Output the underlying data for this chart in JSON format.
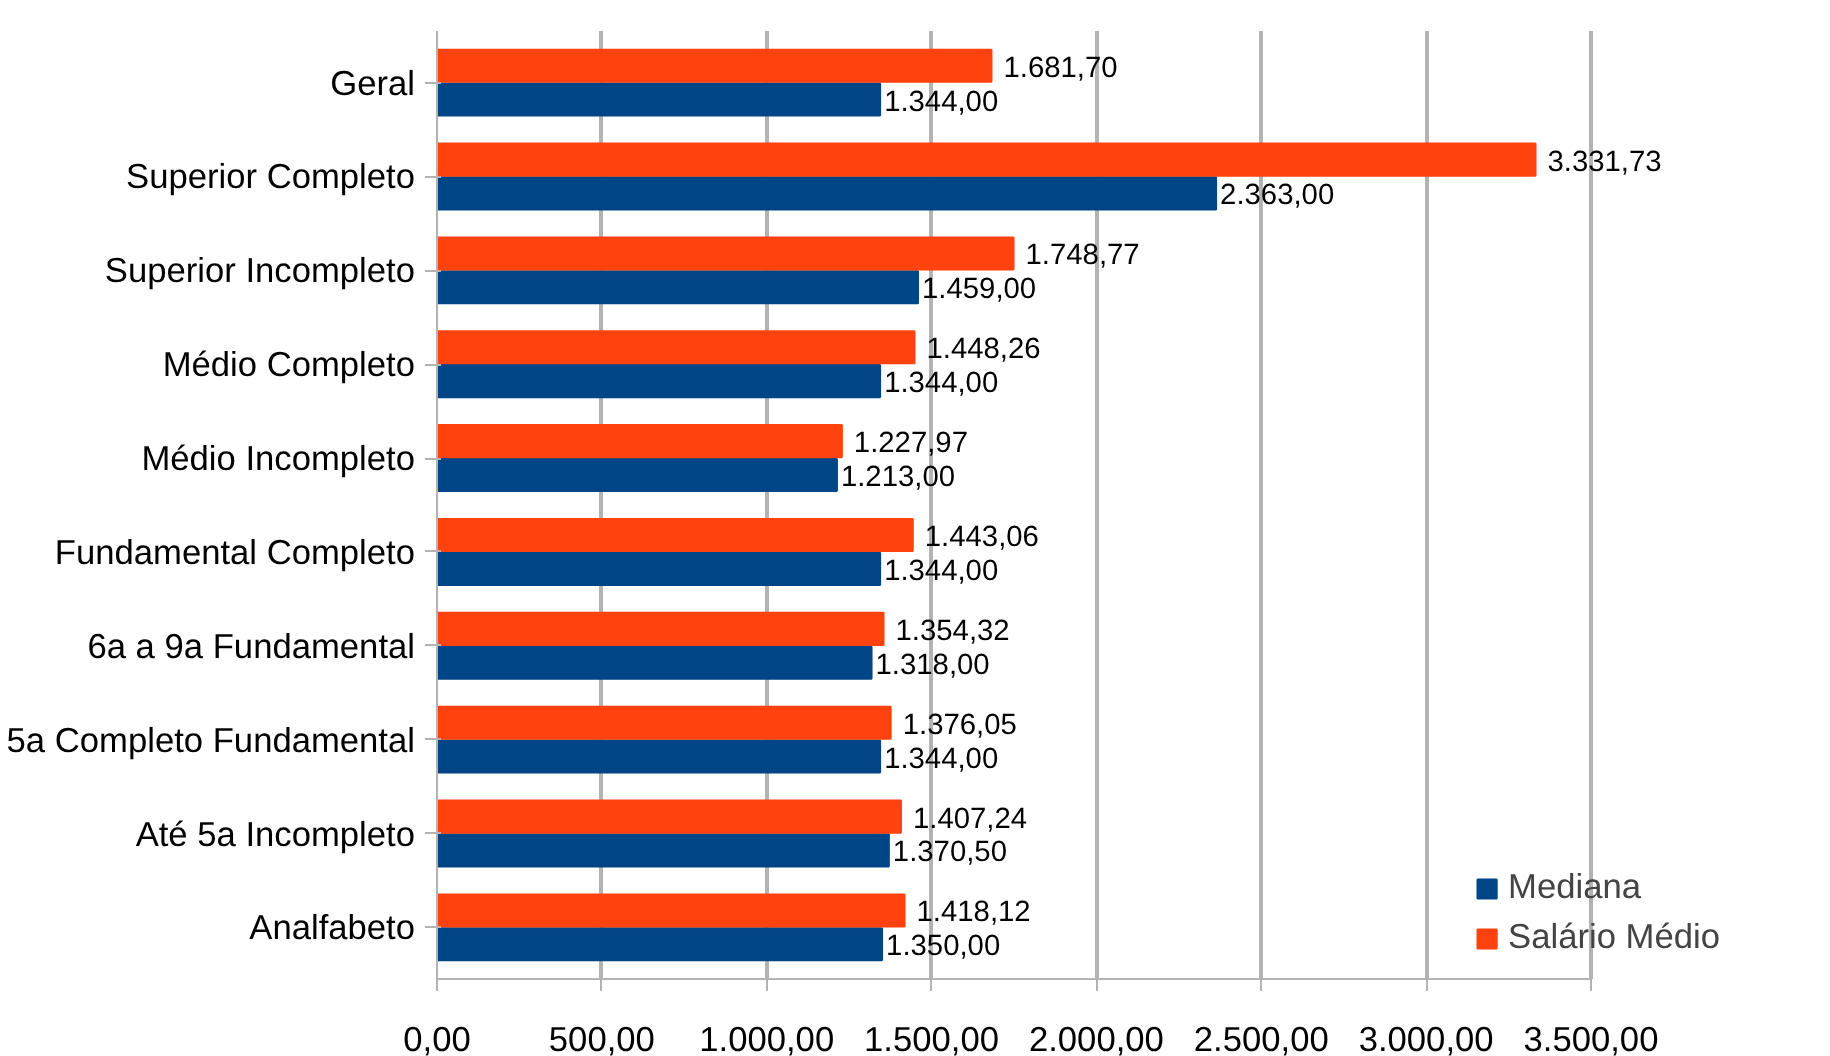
{
  "chart_data": {
    "type": "bar",
    "orientation": "horizontal",
    "categories": [
      "Geral",
      "Superior Completo",
      "Superior Incompleto",
      "Médio Completo",
      "Médio Incompleto",
      "Fundamental Completo",
      "6a a 9a Fundamental",
      "5a Completo Fundamental",
      "Até 5a Incompleto",
      "Analfabeto"
    ],
    "series": [
      {
        "name": "Mediana",
        "color": "#004586",
        "values": [
          1344.0,
          2363.0,
          1459.0,
          1344.0,
          1213.0,
          1344.0,
          1318.0,
          1344.0,
          1370.5,
          1350.0
        ],
        "value_labels": [
          "1.344,00",
          "2.363,00",
          "1.459,00",
          "1.344,00",
          "1.213,00",
          "1.344,00",
          "1.318,00",
          "1.344,00",
          "1.370,50",
          "1.350,00"
        ]
      },
      {
        "name": "Salário Médio",
        "color": "#ff420e",
        "values": [
          1681.7,
          3331.73,
          1748.77,
          1448.26,
          1227.97,
          1443.06,
          1354.32,
          1376.05,
          1407.24,
          1418.12
        ],
        "value_labels": [
          "1.681,70",
          "3.331,73",
          "1.748,77",
          "1.448,26",
          "1.227,97",
          "1.443,06",
          "1.354,32",
          "1.376,05",
          "1.407,24",
          "1.418,12"
        ]
      }
    ],
    "xlim": [
      0,
      3500
    ],
    "xticks": [
      {
        "value": 0,
        "label": "0,00"
      },
      {
        "value": 500,
        "label": "500,00"
      },
      {
        "value": 1000,
        "label": "1.000,00"
      },
      {
        "value": 1500,
        "label": "1.500,00"
      },
      {
        "value": 2000,
        "label": "2.000,00"
      },
      {
        "value": 2500,
        "label": "2.500,00"
      },
      {
        "value": 3000,
        "label": "3.000,00"
      },
      {
        "value": 3500,
        "label": "3.500,00"
      }
    ],
    "grid": "x",
    "legend": "bottom right"
  }
}
